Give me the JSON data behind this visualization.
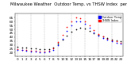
{
  "background_color": "#ffffff",
  "plot_bg_color": "#ffffff",
  "hours": [
    0,
    1,
    2,
    3,
    4,
    5,
    6,
    7,
    8,
    9,
    10,
    11,
    12,
    13,
    14,
    15,
    16,
    17,
    18,
    19,
    20,
    21,
    22,
    23
  ],
  "temp_black": [
    28,
    27,
    27,
    26,
    26,
    25,
    25,
    25,
    27,
    32,
    37,
    42,
    47,
    50,
    52,
    51,
    48,
    45,
    43,
    41,
    39,
    37,
    36,
    35
  ],
  "temp_red": [
    25,
    24,
    23,
    22,
    22,
    21,
    21,
    22,
    26,
    34,
    43,
    53,
    60,
    65,
    64,
    60,
    55,
    49,
    44,
    41,
    38,
    36,
    35,
    33
  ],
  "temp_blue": [
    24,
    23,
    22,
    21,
    21,
    20,
    20,
    21,
    24,
    30,
    38,
    48,
    55,
    60,
    60,
    57,
    52,
    46,
    42,
    39,
    37,
    35,
    33,
    32
  ],
  "legend_blue_label": "Outdoor Temp",
  "legend_red_label": "THSW Index",
  "ylim_min": 15,
  "ylim_max": 70,
  "ytick_values": [
    20,
    25,
    30,
    35,
    40,
    45,
    50,
    55,
    60,
    65
  ],
  "grid_hours": [
    0,
    3,
    6,
    9,
    12,
    15,
    18,
    21
  ],
  "dot_size": 1.5,
  "tick_fontsize": 3.0,
  "title_fontsize": 3.8
}
